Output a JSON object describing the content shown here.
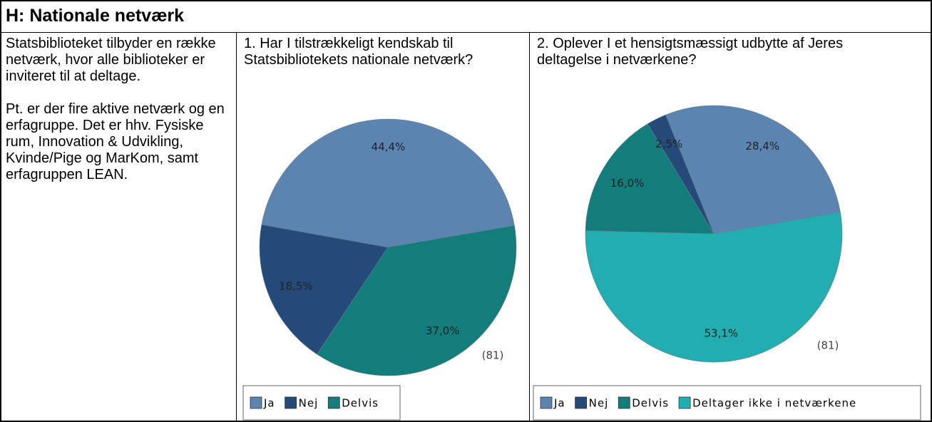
{
  "header": {
    "title": "H: Nationale netværk"
  },
  "intro": [
    "Statsbiblioteket tilbyder en række netværk, hvor alle biblioteker er inviteret til at deltage.",
    "Pt. er der fire aktive netværk og en erfagruppe. Det er hhv. Fysiske rum, Innovation & Udvikling, Kvinde/Pige og MarKom, samt erfagruppen LEAN."
  ],
  "chart_data": [
    {
      "type": "pie",
      "title": "1. Har I tilstrækkeligt kendskab til Statsbibliotekets nationale netværk?",
      "categories": [
        "Ja",
        "Nej",
        "Delvis"
      ],
      "values": [
        44.4,
        18.5,
        37.0
      ],
      "value_labels": [
        "44,4%",
        "18,5%",
        "37,0%"
      ],
      "colors": [
        "#5b84b1",
        "#234a78",
        "#127d7b"
      ],
      "note": "(81)"
    },
    {
      "type": "pie",
      "title": "2. Oplever I et hensigtsmæssigt udbytte af Jeres deltagelse i netværkene?",
      "categories": [
        "Ja",
        "Nej",
        "Delvis",
        "Deltager ikke i netværkene"
      ],
      "values": [
        28.4,
        2.5,
        16.0,
        53.1
      ],
      "value_labels": [
        "28,4%",
        "2,5%",
        "16,0%",
        "53,1%"
      ],
      "colors": [
        "#5b84b1",
        "#234a78",
        "#127d7b",
        "#22aeb0"
      ],
      "note": "(81)"
    }
  ]
}
